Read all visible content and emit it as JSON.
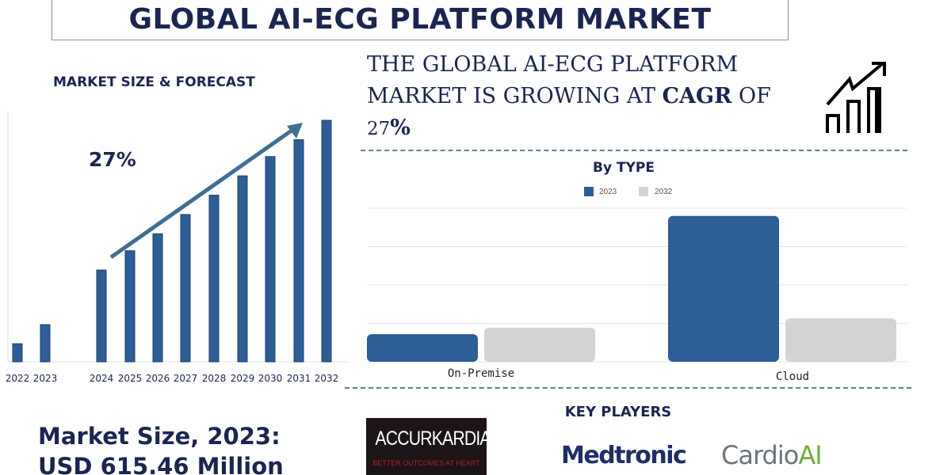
{
  "header": {
    "title": "GLOBAL AI-ECG PLATFORM MARKET"
  },
  "forecast": {
    "title": "MARKET SIZE & FORECAST",
    "cagr_label": "27%"
  },
  "headline": {
    "line1": "THE GLOBAL AI-ECG PLATFORM",
    "line2_pre": "MARKET IS GROWING AT ",
    "line2_bold": "CAGR",
    "line2_post": " OF",
    "line3_num": "27",
    "line3_pct": "%",
    "icon": "growth-chart-icon"
  },
  "market_size": {
    "line1": "Market Size, 2023:",
    "line2": "USD 615.46 Million"
  },
  "key_players": {
    "title": "KEY PLAYERS",
    "logos": [
      {
        "name": "ACCURKARDIA",
        "tagline": "BETTER OUTCOMES AT HEART"
      },
      {
        "name": "Medtronic"
      },
      {
        "name": "Cardio",
        "name_suffix": "AI"
      }
    ]
  },
  "colors": {
    "navy": "#1b2550",
    "bar_blue": "#2e5e96",
    "bar_grey": "#d3d3d3",
    "cardio_green": "#6fae3b"
  },
  "chart_data": [
    {
      "type": "bar",
      "title": "MARKET SIZE & FORECAST",
      "categories": [
        "2022",
        "2023",
        "2024",
        "2025",
        "2026",
        "2027",
        "2028",
        "2029",
        "2030",
        "2031",
        "2032"
      ],
      "values": [
        7.5,
        15.4,
        38,
        46,
        53,
        61,
        69,
        77,
        85,
        92,
        100
      ],
      "value_note": "relative bar heights, no value axis shown",
      "annotation": "27%",
      "trend_arrow": true,
      "grid": false
    },
    {
      "type": "bar",
      "title": "By TYPE",
      "categories": [
        "On-Premise",
        "Cloud"
      ],
      "series": [
        {
          "name": "2023",
          "values": [
            0.72,
            3.8
          ],
          "color": "#2e5e96"
        },
        {
          "name": "2032",
          "values": [
            0.89,
            1.13
          ],
          "color": "#d3d3d3"
        }
      ],
      "ylim": [
        0,
        4
      ],
      "grid": true,
      "legend": "top"
    }
  ]
}
